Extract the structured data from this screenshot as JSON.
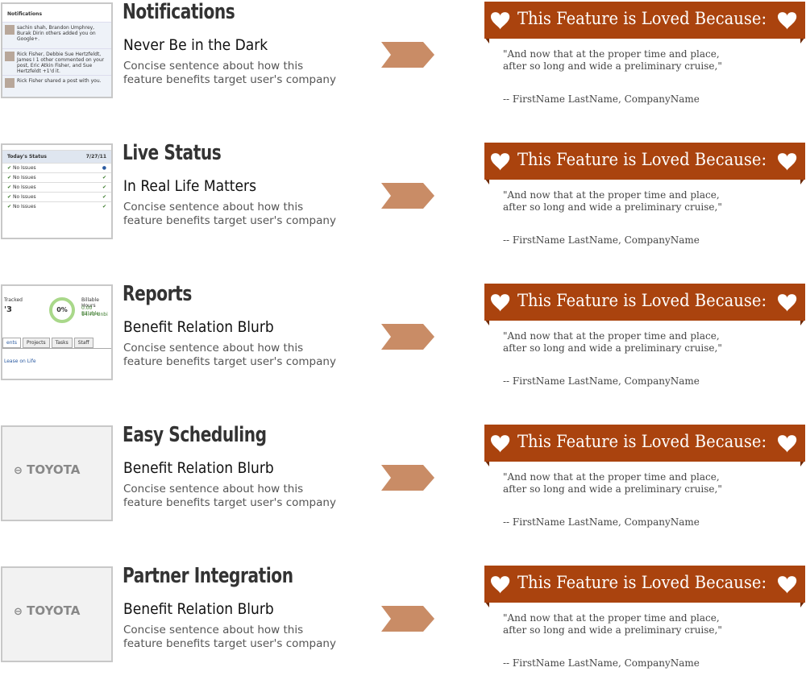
{
  "features": [
    {
      "thumbnail": {
        "heading": "Notifications",
        "items": [
          "sachin shah, Brandon Umphrey, Burak Dirin others added you on Google+.",
          "Rick Fisher, Debbie Sue Hertzfeldt, James I 1 other commented on your post, Eric Atkin Fisher, and Sue Hertzfeldt +1'd it.",
          "Rick Fisher shared a post with you."
        ]
      },
      "title": "Notifications",
      "subtitle": "Never Be in the Dark",
      "description": "Concise sentence about how this feature benefits target user's company",
      "banner": "This Feature is Loved Because:",
      "quote": "\"And now that at the proper time and place, after so long and wide a preliminary cruise,\"",
      "attribution": "-- FirstName LastName, CompanyName"
    },
    {
      "thumbnail": {
        "heading": "Today's Status",
        "date": "7/27/11",
        "items": [
          "No Issues",
          "No Issues",
          "No Issues",
          "No Issues",
          "No Issues"
        ]
      },
      "title": "Live Status",
      "subtitle": "In Real Life Matters",
      "description": "Concise sentence about how this feature benefits target user's company",
      "banner": "This Feature is Loved Because:",
      "quote": "\"And now that at the proper time and place, after so long and wide a preliminary cruise,\"",
      "attribution": "-- FirstName LastName, CompanyName"
    },
    {
      "thumbnail": {
        "heading": "Tracked",
        "number": "'3",
        "percent": "0%",
        "side_heading": "Billable Hours",
        "side_items": [
          "0.00 Billable",
          "14.73 Unbi"
        ],
        "tabs": [
          "ents",
          "Projects",
          "Tasks",
          "Staff"
        ],
        "link": "Lease on Life"
      },
      "title": "Reports",
      "subtitle": "Benefit Relation Blurb",
      "description": "Concise sentence about how this feature benefits target user's company",
      "banner": "This Feature is Loved Because:",
      "quote": "\"And now that at the proper time and place, after so long and wide a preliminary cruise,\"",
      "attribution": "-- FirstName LastName, CompanyName"
    },
    {
      "thumbnail": {
        "logo": "TOYOTA"
      },
      "title": "Easy Scheduling",
      "subtitle": "Benefit Relation Blurb",
      "description": "Concise sentence about how this feature benefits target user's company",
      "banner": "This Feature is Loved Because:",
      "quote": "\"And now that at the proper time and place, after so long and wide a preliminary cruise,\"",
      "attribution": "-- FirstName LastName, CompanyName"
    },
    {
      "thumbnail": {
        "logo": "TOYOTA"
      },
      "title": "Partner Integration",
      "subtitle": "Benefit Relation Blurb",
      "description": "Concise sentence about how this feature benefits target user's company",
      "banner": "This Feature is Loved Because:",
      "quote": "\"And now that at the proper time and place, after so long and wide a preliminary cruise,\"",
      "attribution": "-- FirstName LastName, CompanyName"
    }
  ]
}
